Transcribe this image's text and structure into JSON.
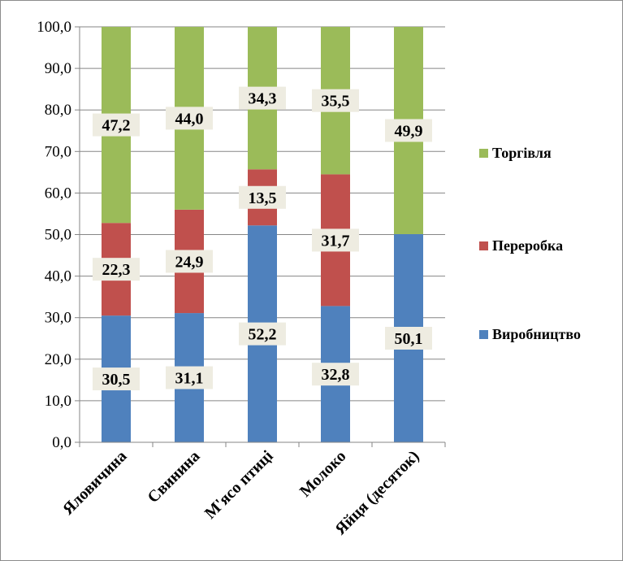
{
  "chart_data": {
    "type": "bar",
    "stacked": true,
    "categories": [
      "Яловичина",
      "Свинина",
      "М'ясо птиці",
      "Молоко",
      "Яйця (десяток)"
    ],
    "series": [
      {
        "name": "Виробництво",
        "values": [
          30.5,
          31.1,
          52.2,
          32.8,
          50.1
        ],
        "labels": [
          "30,5",
          "31,1",
          "52,2",
          "32,8",
          "50,1"
        ],
        "color": "#4f81bd"
      },
      {
        "name": "Переробка",
        "values": [
          22.3,
          24.9,
          13.5,
          31.7,
          0
        ],
        "labels": [
          "22,3",
          "24,9",
          "13,5",
          "31,7",
          ""
        ],
        "color": "#c0504d"
      },
      {
        "name": "Торгівля",
        "values": [
          47.2,
          44.0,
          34.3,
          35.5,
          49.9
        ],
        "labels": [
          "47,2",
          "44,0",
          "34,3",
          "35,5",
          "49,9"
        ],
        "color": "#9bbb59"
      }
    ],
    "yticks": [
      "0,0",
      "10,0",
      "20,0",
      "30,0",
      "40,0",
      "50,0",
      "60,0",
      "70,0",
      "80,0",
      "90,0",
      "100,0"
    ],
    "ylim": [
      0,
      100
    ],
    "grid": true,
    "legend_position": "right",
    "data_label_background": "#eeece1",
    "grid_color": "#868686"
  }
}
